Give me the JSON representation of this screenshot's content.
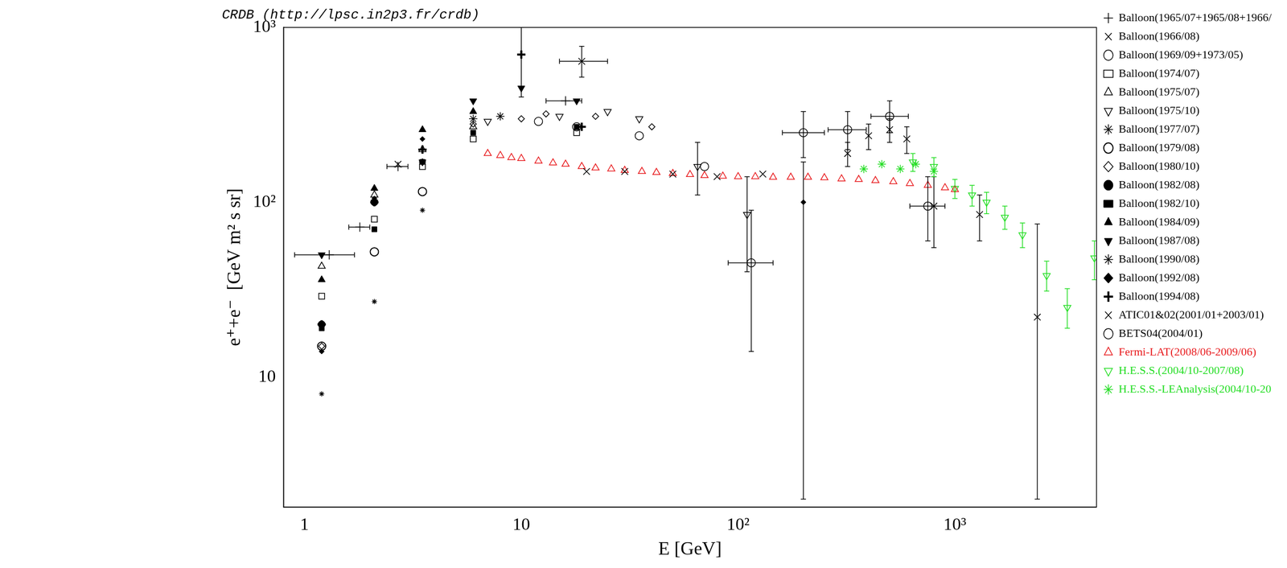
{
  "chart_data": {
    "type": "scatter",
    "title": "CRDB (http://lpsc.in2p3.fr/crdb)",
    "x_label": "E [GeV]",
    "y_label": "e⁺+e⁻  [GeV m² s sr]",
    "log": true,
    "grid": false,
    "legend": "right",
    "xlim": [
      0.8,
      4500
    ],
    "ylim": [
      1.8,
      1000
    ],
    "xticks": [
      1,
      10,
      {
        "value": 100,
        "label": "10²"
      },
      {
        "value": 1000,
        "label": "10³"
      }
    ],
    "yticks": [
      10,
      {
        "value": 100,
        "label": "10²"
      },
      {
        "value": 1000,
        "label": "10³"
      }
    ],
    "series": [
      {
        "name": "Balloon(1965/07+1965/08+1966/",
        "color": "#000000",
        "marker": "plus",
        "x": [
          1.3,
          1.8,
          2.7,
          16
        ],
        "values": [
          50,
          72,
          160,
          380
        ],
        "x_low": [
          0.9,
          1.6,
          2.4,
          13
        ],
        "x_high": [
          1.7,
          2.0,
          3.0,
          19
        ]
      },
      {
        "name": "Balloon(1966/08)",
        "color": "#000000",
        "marker": "x",
        "x": [
          2.7,
          19
        ],
        "values": [
          165,
          640
        ],
        "x_low": [
          null,
          15
        ],
        "x_high": [
          null,
          25
        ],
        "y_low": [
          null,
          520
        ],
        "y_high": [
          null,
          780
        ]
      },
      {
        "name": "Balloon(1969/09+1973/05)",
        "color": "#000000",
        "marker": "circle",
        "x": [
          12,
          18,
          35,
          70
        ],
        "values": [
          290,
          270,
          240,
          160
        ]
      },
      {
        "name": "Balloon(1974/07)",
        "color": "#000000",
        "marker": "square",
        "x": [
          1.2,
          2.1,
          3.5,
          6,
          18
        ],
        "values": [
          29,
          80,
          160,
          230,
          250
        ]
      },
      {
        "name": "Balloon(1975/07)",
        "color": "#000000",
        "marker": "triangle",
        "x": [
          1.2,
          2.1,
          3.5,
          6
        ],
        "values": [
          43,
          110,
          200,
          270
        ]
      },
      {
        "name": "Balloon(1975/10)",
        "color": "#000000",
        "marker": "triangle-down",
        "x": [
          7,
          15,
          25,
          35,
          65,
          110
        ],
        "values": [
          290,
          310,
          330,
          300,
          160,
          85
        ],
        "y_low": [
          null,
          null,
          null,
          null,
          110,
          40
        ],
        "y_high": [
          null,
          null,
          null,
          null,
          220,
          140
        ]
      },
      {
        "name": "Balloon(1977/07)",
        "color": "#000000",
        "marker": "star",
        "x": [
          6,
          8
        ],
        "values": [
          300,
          310
        ]
      },
      {
        "name": "Balloon(1979/08)",
        "color": "#000000",
        "marker": "circle-plus",
        "x": [
          1.2,
          2.1,
          3.5
        ],
        "values": [
          15,
          52,
          115
        ]
      },
      {
        "name": "Balloon(1980/10)",
        "color": "#000000",
        "marker": "diamond",
        "x": [
          1.2,
          3.5,
          6,
          10,
          13,
          22,
          40
        ],
        "values": [
          15,
          170,
          280,
          300,
          320,
          310,
          270
        ]
      },
      {
        "name": "Balloon(1982/08)",
        "color": "#000000",
        "marker": "circle-filled",
        "x": [
          1.2,
          2.1
        ],
        "values": [
          20,
          100
        ]
      },
      {
        "name": "Balloon(1982/10)",
        "color": "#000000",
        "marker": "square-filled",
        "x": [
          1.2,
          2.1,
          3.5,
          6,
          18
        ],
        "values": [
          19,
          70,
          170,
          250,
          270
        ]
      },
      {
        "name": "Balloon(1984/09)",
        "color": "#000000",
        "marker": "triangle-filled",
        "x": [
          1.2,
          2.1,
          3.5,
          6
        ],
        "values": [
          36,
          120,
          260,
          330
        ]
      },
      {
        "name": "Balloon(1987/08)",
        "color": "#000000",
        "marker": "triangle-down-filled",
        "x": [
          1.2,
          2.1,
          3.5,
          6,
          10,
          18
        ],
        "values": [
          50,
          100,
          170,
          380,
          450,
          380
        ]
      },
      {
        "name": "Balloon(1990/08)",
        "color": "#000000",
        "marker": "asterisk",
        "x": [
          1.2,
          2.1,
          3.5
        ],
        "values": [
          8,
          27,
          90
        ]
      },
      {
        "name": "Balloon(1992/08)",
        "color": "#000000",
        "marker": "diamond-filled",
        "x": [
          1.2,
          2.1,
          3.5,
          200
        ],
        "values": [
          14,
          105,
          230,
          100
        ],
        "y_low": [
          null,
          null,
          null,
          2
        ],
        "y_high": [
          null,
          null,
          null,
          170
        ]
      },
      {
        "name": "Balloon(1994/08)",
        "color": "#000000",
        "marker": "plus-filled",
        "x": [
          1.2,
          2.1,
          3.5,
          10,
          19
        ],
        "values": [
          20,
          100,
          200,
          700,
          270
        ],
        "y_low": [
          null,
          null,
          null,
          400,
          null
        ],
        "y_high": [
          null,
          null,
          null,
          1000,
          null
        ]
      },
      {
        "name": "ATIC01&02(2001/01+2003/01)",
        "color": "#000000",
        "marker": "x",
        "x": [
          20,
          30,
          50,
          80,
          130,
          320,
          400,
          500,
          600,
          800,
          1300,
          2400
        ],
        "values": [
          150,
          150,
          145,
          140,
          145,
          190,
          240,
          260,
          230,
          95,
          85,
          22
        ],
        "y_low": [
          null,
          null,
          null,
          null,
          null,
          160,
          200,
          220,
          190,
          55,
          60,
          2
        ],
        "y_high": [
          null,
          null,
          null,
          null,
          null,
          220,
          280,
          300,
          270,
          140,
          110,
          75
        ]
      },
      {
        "name": "BETS04(2004/01)",
        "color": "#000000",
        "marker": "circle",
        "x": [
          115,
          200,
          320,
          500,
          750
        ],
        "values": [
          45,
          250,
          260,
          310,
          95
        ],
        "x_low": [
          90,
          160,
          260,
          410,
          620
        ],
        "x_high": [
          145,
          250,
          390,
          610,
          900
        ],
        "y_low": [
          14,
          180,
          200,
          250,
          60
        ],
        "y_high": [
          90,
          330,
          330,
          380,
          140
        ]
      },
      {
        "name": "Fermi-LAT(2008/06-2009/06)",
        "color": "#e8191c",
        "marker": "triangle",
        "x": [
          7,
          8,
          9,
          10,
          12,
          14,
          16,
          19,
          22,
          26,
          30,
          36,
          42,
          50,
          60,
          70,
          85,
          100,
          120,
          145,
          175,
          210,
          250,
          300,
          360,
          430,
          520,
          620,
          750,
          900,
          1000
        ],
        "values": [
          190,
          185,
          180,
          178,
          172,
          168,
          165,
          160,
          157,
          155,
          152,
          150,
          148,
          146,
          144,
          142,
          141,
          140,
          140,
          139,
          139,
          139,
          138,
          136,
          135,
          133,
          131,
          128,
          125,
          121,
          118
        ]
      },
      {
        "name": "H.E.S.S.(2004/10-2007/08)",
        "color": "#22dd22",
        "marker": "triangle-down",
        "x": [
          640,
          800,
          1000,
          1200,
          1400,
          1700,
          2050,
          2650,
          3300,
          4400
        ],
        "values": [
          170,
          160,
          120,
          110,
          100,
          82,
          65,
          38,
          25,
          48
        ],
        "y_low": [
          150,
          140,
          105,
          95,
          86,
          70,
          55,
          31,
          19,
          36
        ],
        "y_high": [
          190,
          180,
          135,
          125,
          114,
          95,
          76,
          46,
          32,
          60
        ]
      },
      {
        "name": "H.E.S.S.-LEAnalysis(2004/10-20",
        "color": "#22dd22",
        "marker": "star",
        "x": [
          380,
          460,
          560,
          660,
          800
        ],
        "values": [
          155,
          165,
          155,
          165,
          150
        ]
      }
    ]
  }
}
